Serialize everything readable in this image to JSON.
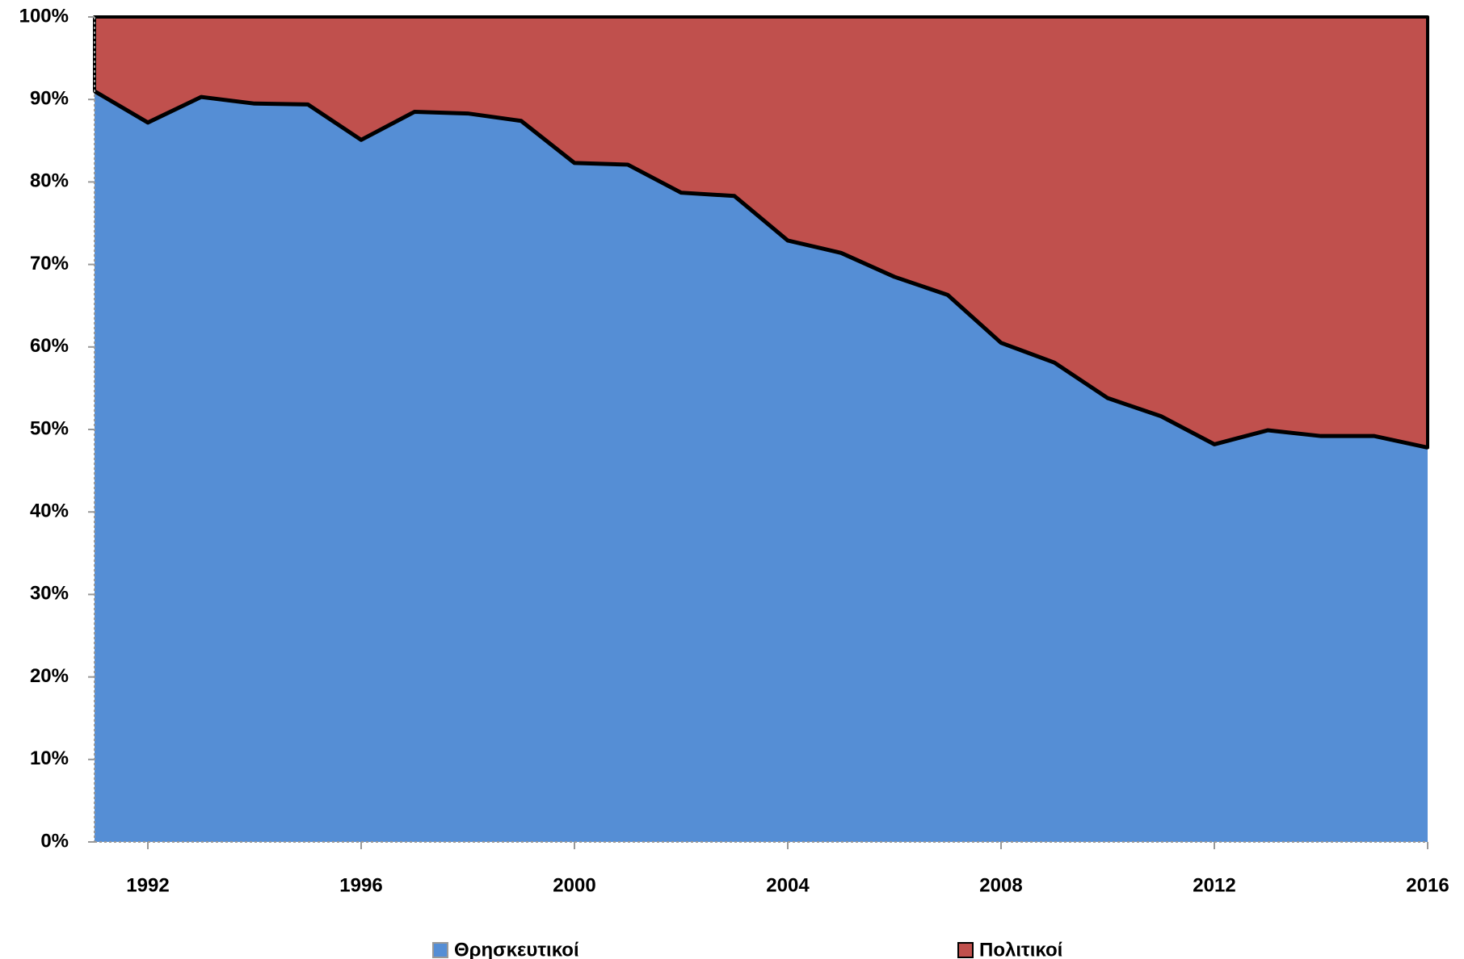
{
  "chart_data": {
    "type": "stacked_area",
    "x": [
      1991,
      1992,
      1993,
      1994,
      1995,
      1996,
      1997,
      1998,
      1999,
      2000,
      2001,
      2002,
      2003,
      2004,
      2005,
      2006,
      2007,
      2008,
      2009,
      2010,
      2011,
      2012,
      2013,
      2014,
      2015,
      2016
    ],
    "series": [
      {
        "name": "Θρησκευτικοί",
        "color": "#558ed5",
        "values": [
          91,
          87.2,
          90.3,
          89.5,
          89.4,
          85.1,
          88.5,
          88.3,
          87.4,
          82.3,
          82.1,
          78.7,
          78.3,
          72.9,
          71.4,
          68.5,
          66.3,
          60.5,
          58.1,
          53.8,
          51.6,
          48.2,
          49.9,
          49.2,
          49.2,
          47.8
        ]
      },
      {
        "name": "Πολιτικοί",
        "color": "#c0504d",
        "values": [
          9,
          12.8,
          9.7,
          10.5,
          10.6,
          14.9,
          11.5,
          11.7,
          12.6,
          17.7,
          17.9,
          21.3,
          21.7,
          27.1,
          28.6,
          31.5,
          33.7,
          39.5,
          41.9,
          46.2,
          48.4,
          51.8,
          50.1,
          50.8,
          50.8,
          52.2
        ]
      }
    ],
    "xlim": [
      1991,
      2016
    ],
    "xticks": [
      1992,
      1996,
      2000,
      2004,
      2008,
      2012,
      2016
    ],
    "ylim": [
      0,
      100
    ],
    "yticks": [
      {
        "value": 0,
        "label": "0%"
      },
      {
        "value": 10,
        "label": "10%"
      },
      {
        "value": 20,
        "label": "20%"
      },
      {
        "value": 30,
        "label": "30%"
      },
      {
        "value": 40,
        "label": "40%"
      },
      {
        "value": 50,
        "label": "50%"
      },
      {
        "value": 60,
        "label": "60%"
      },
      {
        "value": 70,
        "label": "70%"
      },
      {
        "value": 80,
        "label": "80%"
      },
      {
        "value": 90,
        "label": "90%"
      },
      {
        "value": 100,
        "label": "100%"
      }
    ],
    "legend": "bottom"
  }
}
